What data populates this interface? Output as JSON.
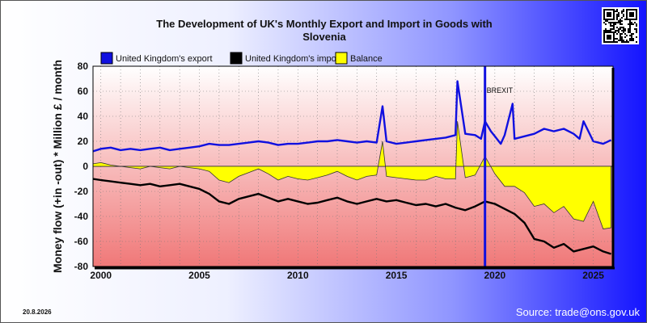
{
  "chart_data": {
    "type": "line",
    "title_line1": "The Development of UK's Monthly Export and Import in Goods with",
    "title_line2": "Slovenia",
    "ylabel": "Money flow (+in -out) * Million £ / month",
    "ylim": [
      -80,
      80
    ],
    "yticks": [
      80,
      60,
      40,
      20,
      0,
      -20,
      -40,
      -60,
      -80
    ],
    "xlim": [
      1999.6,
      2026.0
    ],
    "xticks": [
      {
        "value": 2000,
        "label": "2000"
      },
      {
        "value": 2005,
        "label": "2005"
      },
      {
        "value": 2010,
        "label": "2010"
      },
      {
        "value": 2015,
        "label": "2015"
      },
      {
        "value": 2020,
        "label": "2020"
      },
      {
        "value": 2025,
        "label": "2025"
      }
    ],
    "grid": true,
    "legend_position": "top-left",
    "annotation": {
      "label": "BREXIT",
      "x": 2019.5
    },
    "series": [
      {
        "name": "United Kingdom's export",
        "color": "#1010e0",
        "x": [
          1999.6,
          2000.0,
          2000.5,
          2001.0,
          2001.5,
          2002.0,
          2002.5,
          2003.0,
          2003.5,
          2004.0,
          2004.5,
          2005.0,
          2005.5,
          2006.0,
          2006.5,
          2007.0,
          2007.5,
          2008.0,
          2008.5,
          2009.0,
          2009.5,
          2010.0,
          2010.5,
          2011.0,
          2011.5,
          2012.0,
          2012.5,
          2013.0,
          2013.5,
          2014.0,
          2014.3,
          2014.5,
          2015.0,
          2015.5,
          2016.0,
          2016.5,
          2017.0,
          2017.5,
          2018.0,
          2018.1,
          2018.5,
          2019.0,
          2019.3,
          2019.5,
          2019.8,
          2020.0,
          2020.3,
          2020.5,
          2020.9,
          2021.0,
          2021.5,
          2022.0,
          2022.5,
          2023.0,
          2023.5,
          2024.0,
          2024.3,
          2024.5,
          2025.0,
          2025.5,
          2025.9
        ],
        "values": [
          12,
          14,
          15,
          13,
          14,
          13,
          14,
          15,
          13,
          14,
          15,
          16,
          18,
          17,
          17,
          18,
          19,
          20,
          19,
          17,
          18,
          18,
          19,
          20,
          20,
          21,
          20,
          19,
          20,
          19,
          48,
          20,
          18,
          19,
          20,
          21,
          22,
          23,
          25,
          68,
          26,
          25,
          22,
          36,
          28,
          24,
          18,
          25,
          50,
          22,
          24,
          26,
          30,
          28,
          30,
          26,
          22,
          36,
          20,
          18,
          21
        ]
      },
      {
        "name": "United Kingdom's import",
        "color": "#000000",
        "x": [
          1999.6,
          2000.0,
          2000.5,
          2001.0,
          2001.5,
          2002.0,
          2002.5,
          2003.0,
          2003.5,
          2004.0,
          2004.5,
          2005.0,
          2005.5,
          2006.0,
          2006.5,
          2007.0,
          2007.5,
          2008.0,
          2008.5,
          2009.0,
          2009.5,
          2010.0,
          2010.5,
          2011.0,
          2011.5,
          2012.0,
          2012.5,
          2013.0,
          2013.5,
          2014.0,
          2014.5,
          2015.0,
          2015.5,
          2016.0,
          2016.5,
          2017.0,
          2017.5,
          2018.0,
          2018.5,
          2019.0,
          2019.5,
          2020.0,
          2020.5,
          2021.0,
          2021.5,
          2022.0,
          2022.5,
          2023.0,
          2023.5,
          2024.0,
          2024.5,
          2025.0,
          2025.5,
          2025.9
        ],
        "values": [
          -10,
          -11,
          -12,
          -13,
          -14,
          -15,
          -14,
          -16,
          -15,
          -14,
          -16,
          -18,
          -22,
          -28,
          -30,
          -26,
          -24,
          -22,
          -25,
          -28,
          -26,
          -28,
          -30,
          -29,
          -27,
          -25,
          -28,
          -30,
          -28,
          -26,
          -28,
          -27,
          -29,
          -31,
          -30,
          -32,
          -30,
          -33,
          -35,
          -32,
          -28,
          -30,
          -34,
          -38,
          -45,
          -58,
          -60,
          -65,
          -62,
          -68,
          -66,
          -64,
          -68,
          -70
        ]
      },
      {
        "name": "Balance",
        "color": "#ffff00",
        "x": [
          1999.6,
          2000.0,
          2000.5,
          2001.0,
          2001.5,
          2002.0,
          2002.5,
          2003.0,
          2003.5,
          2004.0,
          2004.5,
          2005.0,
          2005.5,
          2006.0,
          2006.5,
          2007.0,
          2007.5,
          2008.0,
          2008.5,
          2009.0,
          2009.5,
          2010.0,
          2010.5,
          2011.0,
          2011.5,
          2012.0,
          2012.5,
          2013.0,
          2013.5,
          2014.0,
          2014.3,
          2014.5,
          2015.0,
          2015.5,
          2016.0,
          2016.5,
          2017.0,
          2017.5,
          2018.0,
          2018.1,
          2018.5,
          2019.0,
          2019.5,
          2020.0,
          2020.5,
          2021.0,
          2021.5,
          2022.0,
          2022.5,
          2023.0,
          2023.5,
          2024.0,
          2024.5,
          2025.0,
          2025.5,
          2025.9
        ],
        "values": [
          2,
          3,
          1,
          0,
          -1,
          -2,
          0,
          -1,
          -2,
          0,
          -1,
          -2,
          -4,
          -11,
          -13,
          -8,
          -5,
          -2,
          -6,
          -11,
          -8,
          -10,
          -11,
          -9,
          -7,
          -4,
          -8,
          -11,
          -8,
          -7,
          20,
          -8,
          -9,
          -10,
          -11,
          -11,
          -8,
          -10,
          -10,
          36,
          -9,
          -7,
          8,
          -6,
          -16,
          -16,
          -21,
          -32,
          -30,
          -37,
          -32,
          -42,
          -44,
          -28,
          -50,
          -49
        ]
      }
    ]
  },
  "footer": {
    "date": "20.8.2026",
    "source": "Source: trade@ons.gov.uk"
  },
  "colors": {
    "plot_top": "#ffffff",
    "plot_bottom": "#f07878",
    "brexit_line": "#1010e0"
  },
  "icons": {
    "qr": "qr-code-icon"
  }
}
